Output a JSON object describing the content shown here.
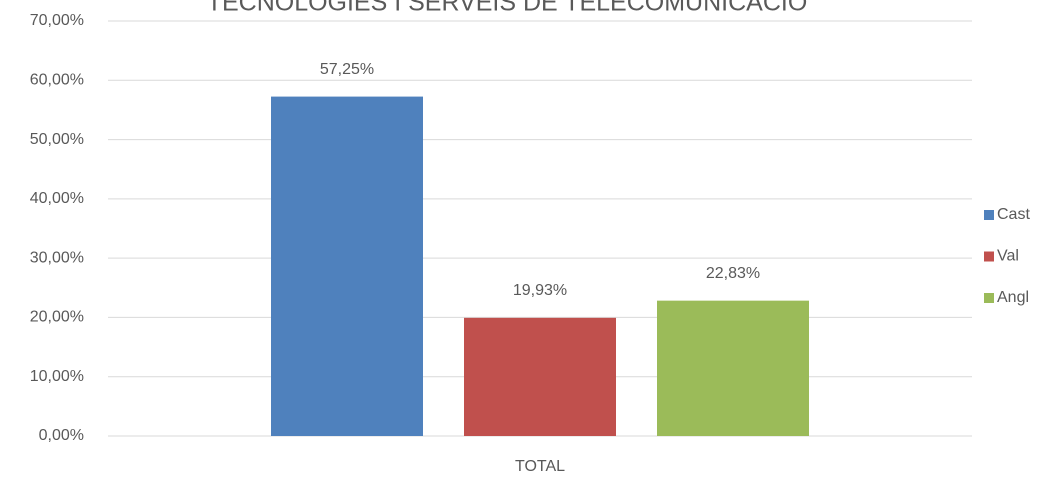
{
  "chart_data": {
    "type": "bar",
    "title": "TECNOLOGIES I SERVEIS DE TELECOMUNICACIÓ",
    "categories": [
      "TOTAL"
    ],
    "series": [
      {
        "name": "Cast",
        "color": "#4f81bd",
        "values": [
          57.25
        ],
        "value_labels": [
          "57,25%"
        ]
      },
      {
        "name": "Val",
        "color": "#c0504d",
        "values": [
          19.93
        ],
        "value_labels": [
          "19,93%"
        ]
      },
      {
        "name": "Angl",
        "color": "#9bbb59",
        "values": [
          22.83
        ],
        "value_labels": [
          "22,83%"
        ]
      }
    ],
    "ylim": [
      0,
      70
    ],
    "yticks": [
      {
        "value": 0,
        "label": "0,00%"
      },
      {
        "value": 10,
        "label": "10,00%"
      },
      {
        "value": 20,
        "label": "20,00%"
      },
      {
        "value": 30,
        "label": "30,00%"
      },
      {
        "value": 40,
        "label": "40,00%"
      },
      {
        "value": 50,
        "label": "50,00%"
      },
      {
        "value": 60,
        "label": "60,00%"
      },
      {
        "value": 70,
        "label": "70,00%"
      }
    ],
    "grid": true,
    "legend": "right"
  }
}
